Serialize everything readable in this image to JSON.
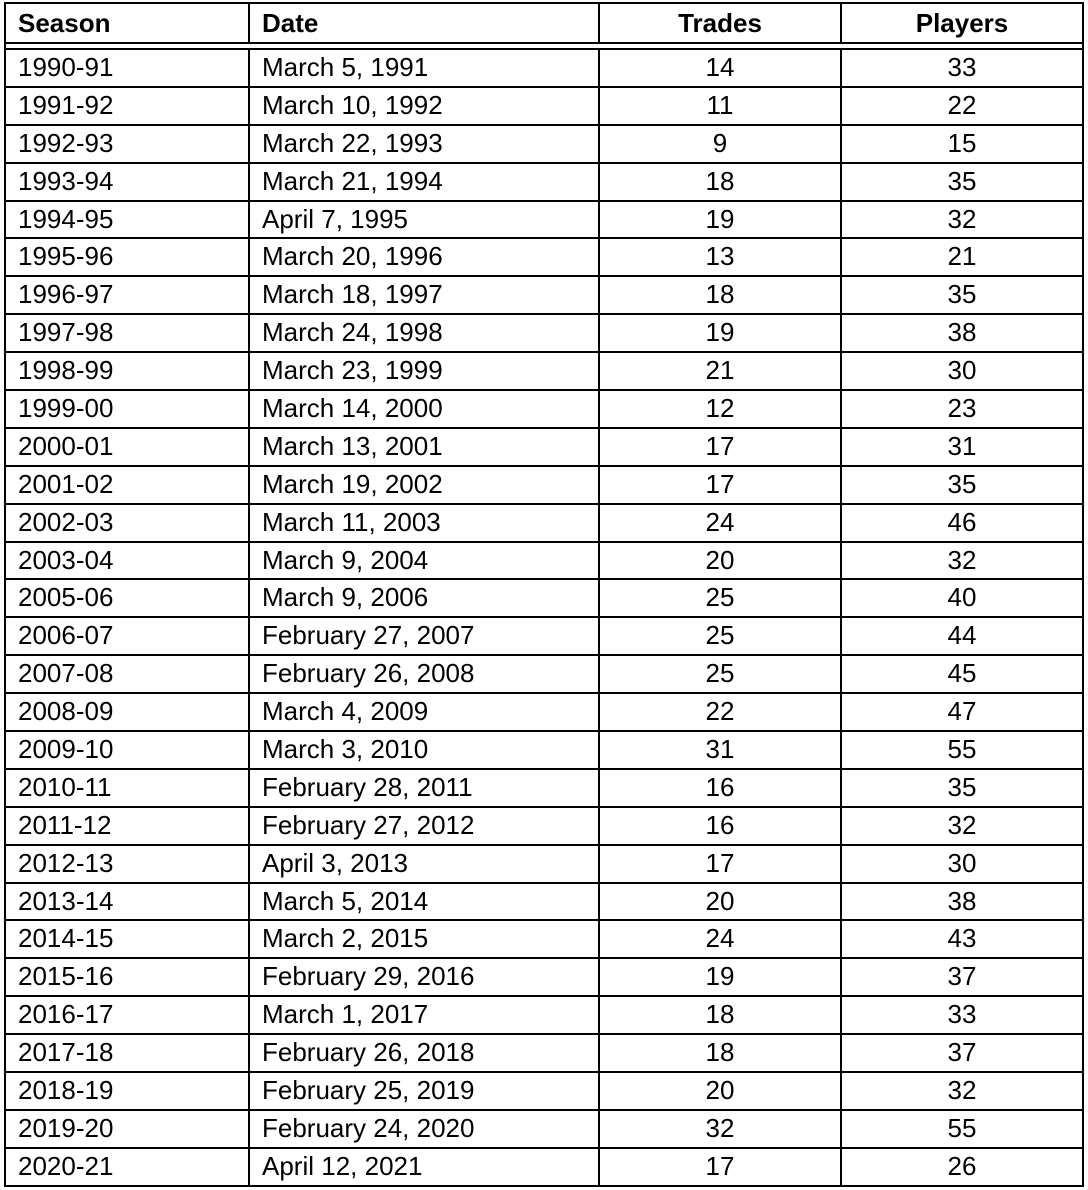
{
  "table": {
    "headers": [
      "Season",
      "Date",
      "Trades",
      "Players"
    ],
    "rows": [
      [
        "1990-91",
        "March 5, 1991",
        "14",
        "33"
      ],
      [
        "1991-92",
        "March 10, 1992",
        "11",
        "22"
      ],
      [
        "1992-93",
        "March 22, 1993",
        "9",
        "15"
      ],
      [
        "1993-94",
        "March 21, 1994",
        "18",
        "35"
      ],
      [
        "1994-95",
        "April 7, 1995",
        "19",
        "32"
      ],
      [
        "1995-96",
        "March 20, 1996",
        "13",
        "21"
      ],
      [
        "1996-97",
        "March 18, 1997",
        "18",
        "35"
      ],
      [
        "1997-98",
        "March 24, 1998",
        "19",
        "38"
      ],
      [
        "1998-99",
        "March 23, 1999",
        "21",
        "30"
      ],
      [
        "1999-00",
        "March 14, 2000",
        "12",
        "23"
      ],
      [
        "2000-01",
        "March 13, 2001",
        "17",
        "31"
      ],
      [
        "2001-02",
        "March 19, 2002",
        "17",
        "35"
      ],
      [
        "2002-03",
        "March 11, 2003",
        "24",
        "46"
      ],
      [
        "2003-04",
        "March 9, 2004",
        "20",
        "32"
      ],
      [
        "2005-06",
        "March 9, 2006",
        "25",
        "40"
      ],
      [
        "2006-07",
        "February 27, 2007",
        "25",
        "44"
      ],
      [
        "2007-08",
        "February 26, 2008",
        "25",
        "45"
      ],
      [
        "2008-09",
        "March 4, 2009",
        "22",
        "47"
      ],
      [
        "2009-10",
        "March 3, 2010",
        "31",
        "55"
      ],
      [
        "2010-11",
        "February 28, 2011",
        "16",
        "35"
      ],
      [
        "2011-12",
        "February 27, 2012",
        "16",
        "32"
      ],
      [
        "2012-13",
        "April 3, 2013",
        "17",
        "30"
      ],
      [
        "2013-14",
        "March 5, 2014",
        "20",
        "38"
      ],
      [
        "2014-15",
        "March 2, 2015",
        "24",
        "43"
      ],
      [
        "2015-16",
        "February 29, 2016",
        "19",
        "37"
      ],
      [
        "2016-17",
        "March 1, 2017",
        "18",
        "33"
      ],
      [
        "2017-18",
        "February 26, 2018",
        "18",
        "37"
      ],
      [
        "2018-19",
        "February 25, 2019",
        "20",
        "32"
      ],
      [
        "2019-20",
        "February 24, 2020",
        "32",
        "55"
      ],
      [
        "2020-21",
        "April 12, 2021",
        "17",
        "26"
      ]
    ]
  }
}
